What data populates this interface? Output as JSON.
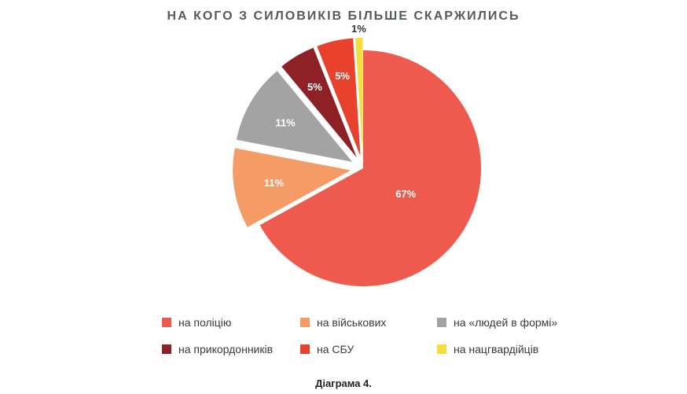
{
  "chart_data": {
    "type": "pie",
    "title": "НА КОГО З СИЛОВИКІВ БІЛЬШЕ СКАРЖИЛИСЬ",
    "caption": "Діаграма 4.",
    "slices": [
      {
        "label": "на поліцію",
        "value": 67,
        "display": "67%",
        "color": "#ee5b4e"
      },
      {
        "label": "на військових",
        "value": 11,
        "display": "11%",
        "color": "#f49b66"
      },
      {
        "label": "на «людей в формі»",
        "value": 11,
        "display": "11%",
        "color": "#a3a3a3"
      },
      {
        "label": "на прикордонників",
        "value": 5,
        "display": "5%",
        "color": "#8e2126"
      },
      {
        "label": "на СБУ",
        "value": 5,
        "display": "5%",
        "color": "#e8412c"
      },
      {
        "label": "на нацгвардійців",
        "value": 1,
        "display": "1%",
        "color": "#f4de3c"
      }
    ],
    "legend_placement": "bottom"
  }
}
